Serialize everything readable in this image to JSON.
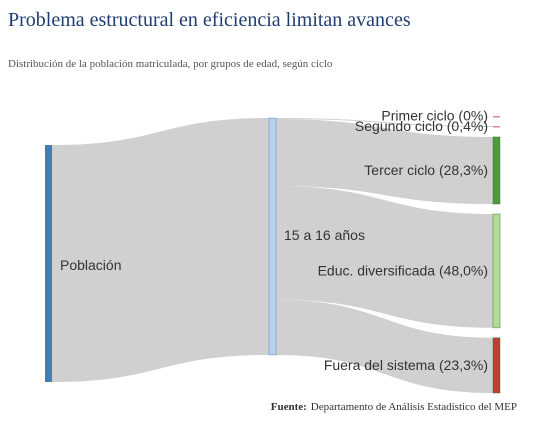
{
  "chart_data": {
    "type": "sankey",
    "title": "Problema estructural en eficiencia limitan avances",
    "subtitle": "Distribución de la población matriculada, por grupos de edad, según ciclo",
    "nodes": [
      {
        "name": "Población",
        "color": "#3f7fb5"
      },
      {
        "name": "15 a 16 años",
        "color": "#b7d0ee"
      },
      {
        "name": "Primer ciclo (0%)",
        "color": "#d98c8c"
      },
      {
        "name": "Segundo ciclo (0,4%)",
        "color": "#d98c8c"
      },
      {
        "name": "Tercer ciclo (28,3%)",
        "color": "#4f9a3f"
      },
      {
        "name": "Educ. diversificada (48,0%)",
        "color": "#b0dc98"
      },
      {
        "name": "Fuera del sistema (23,3%)",
        "color": "#c23b36"
      }
    ],
    "links": [
      {
        "source": "Población",
        "target": "15 a 16 años",
        "value": 100
      },
      {
        "source": "15 a 16 años",
        "target": "Primer ciclo (0%)",
        "value": 0
      },
      {
        "source": "15 a 16 años",
        "target": "Segundo ciclo (0,4%)",
        "value": 0.4
      },
      {
        "source": "15 a 16 años",
        "target": "Tercer ciclo (28,3%)",
        "value": 28.3
      },
      {
        "source": "15 a 16 años",
        "target": "Educ. diversificada (48,0%)",
        "value": 48.0
      },
      {
        "source": "15 a 16 años",
        "target": "Fuera del sistema (23,3%)",
        "value": 23.3
      }
    ],
    "source_note": {
      "label": "Fuente:",
      "text": "Departamento de Análisis Estadístico del MEP"
    }
  }
}
